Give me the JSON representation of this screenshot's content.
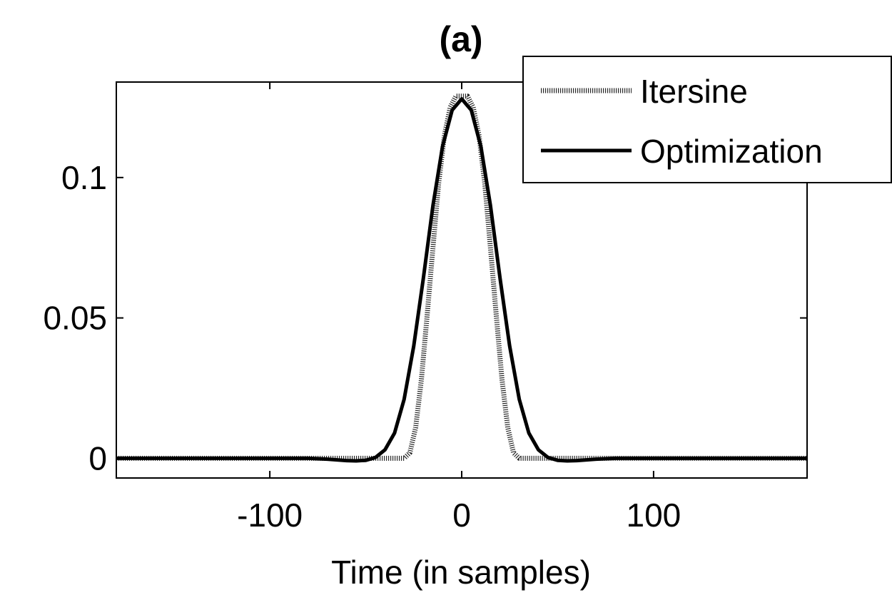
{
  "chart_data": {
    "type": "line",
    "title": "(a)",
    "xlabel": "Time (in samples)",
    "ylabel": "",
    "xlim": [
      -180,
      180
    ],
    "ylim": [
      -0.007,
      0.134
    ],
    "xticks": [
      -100,
      0,
      100
    ],
    "xtick_labels": [
      "-100",
      "0",
      "100"
    ],
    "yticks": [
      0,
      0.05,
      0.1
    ],
    "ytick_labels": [
      "0",
      "0.05",
      "0.1"
    ],
    "grid": false,
    "legend_position": "top-right",
    "series": [
      {
        "name": "Itersine",
        "style": "dotted",
        "color": "#000000",
        "x": [
          -180,
          -30,
          -27,
          -24,
          -21,
          -18,
          -15,
          -12,
          -9,
          -6,
          -3,
          0,
          3,
          6,
          9,
          12,
          15,
          18,
          21,
          24,
          27,
          30,
          180
        ],
        "y": [
          0,
          0,
          0.002,
          0.011,
          0.028,
          0.051,
          0.075,
          0.098,
          0.115,
          0.125,
          0.129,
          0.129,
          0.129,
          0.125,
          0.115,
          0.098,
          0.075,
          0.051,
          0.028,
          0.011,
          0.002,
          0,
          0
        ]
      },
      {
        "name": "Optimization",
        "style": "solid",
        "color": "#000000",
        "x": [
          -180,
          -80,
          -70,
          -60,
          -55,
          -50,
          -45,
          -40,
          -35,
          -30,
          -25,
          -20,
          -15,
          -10,
          -5,
          0,
          5,
          10,
          15,
          20,
          25,
          30,
          35,
          40,
          45,
          50,
          55,
          60,
          70,
          80,
          180
        ],
        "y": [
          0,
          0,
          -0.0003,
          -0.0008,
          -0.0009,
          -0.0007,
          0.0003,
          0.003,
          0.009,
          0.021,
          0.04,
          0.064,
          0.09,
          0.111,
          0.124,
          0.128,
          0.124,
          0.111,
          0.09,
          0.064,
          0.04,
          0.021,
          0.009,
          0.003,
          0.0003,
          -0.0007,
          -0.0009,
          -0.0008,
          -0.0003,
          0,
          0
        ]
      }
    ]
  }
}
